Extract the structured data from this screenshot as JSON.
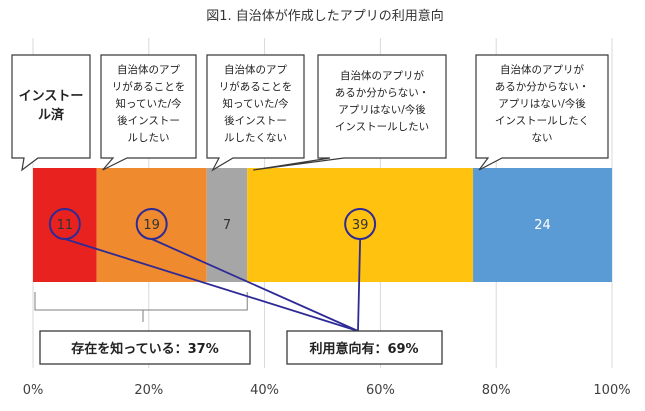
{
  "chart_data": {
    "type": "bar",
    "orientation": "horizontal",
    "stacked": true,
    "title": "図1. 自治体が作成したアプリの利用意向",
    "xlim": [
      0,
      100
    ],
    "x_ticks": [
      "0%",
      "20%",
      "40%",
      "60%",
      "80%",
      "100%"
    ],
    "grid": true,
    "series": [
      {
        "label": "インストール済",
        "value": 11,
        "color": "#e8231f",
        "circled": true,
        "text_color": "#333333"
      },
      {
        "label": "自治体のアプリがあることを知っていた/今後インストールしたい",
        "value": 19,
        "color": "#ef8a2e",
        "circled": true,
        "text_color": "#333333"
      },
      {
        "label": "自治体のアプリがあることを知っていた/今後インストールしたくない",
        "value": 7,
        "color": "#a6a6a6",
        "circled": false,
        "text_color": "#333333"
      },
      {
        "label": "自治体のアプリがあるか分からない・アプリはない/今後インストールしたい",
        "value": 39,
        "color": "#ffc20e",
        "circled": true,
        "text_color": "#333333"
      },
      {
        "label": "自治体のアプリがあるか分からない・アプリはない/今後インストールしたくない",
        "value": 24,
        "color": "#5b9bd5",
        "circled": false,
        "text_color": "#ffffff"
      }
    ],
    "annotations": {
      "aware": "存在を知っている：37%",
      "intent": "利用意向有：69%"
    },
    "accent_color": "#2e2a96"
  }
}
